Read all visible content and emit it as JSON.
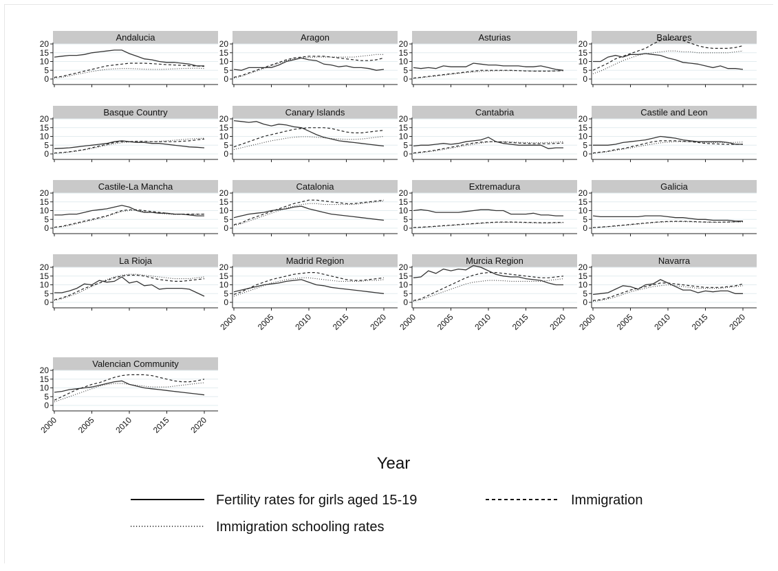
{
  "figure": {
    "background": "#ffffff"
  },
  "chart_data": {
    "type": "line",
    "xlabel": "Year",
    "ylim": [
      0,
      20
    ],
    "xlim": [
      2000,
      2020
    ],
    "y_ticks": [
      "0",
      "5",
      "10",
      "15",
      "20"
    ],
    "x_ticks": [
      "2000",
      "2005",
      "2010",
      "2015",
      "2020"
    ],
    "x": [
      2000,
      2001,
      2002,
      2003,
      2004,
      2005,
      2006,
      2007,
      2008,
      2009,
      2010,
      2011,
      2012,
      2013,
      2014,
      2015,
      2016,
      2017,
      2018,
      2019,
      2020
    ],
    "legend": [
      {
        "key": "fertility",
        "label": "Fertility rates for girls aged 15-19",
        "style": "solid"
      },
      {
        "key": "immigration",
        "label": "Immigration",
        "style": "dashed"
      },
      {
        "key": "schooling",
        "label": "Immigration schooling rates",
        "style": "dotted"
      }
    ],
    "panels": [
      {
        "region": "Andalucia",
        "fertility": [
          12.5,
          13,
          13.5,
          13.5,
          14,
          15,
          15.5,
          16,
          16.5,
          16.5,
          14.5,
          13,
          11.5,
          11,
          10,
          9.5,
          9.5,
          9,
          8.5,
          7.5,
          7.5
        ],
        "immigration": [
          1,
          1.5,
          2.5,
          3.5,
          4.5,
          5.5,
          6.5,
          7.5,
          8,
          8.5,
          9,
          9,
          9,
          8.8,
          8.5,
          8.2,
          8,
          7.8,
          7.6,
          7.4,
          7.2
        ],
        "schooling": [
          0.5,
          1,
          1.8,
          2.7,
          3.5,
          4.3,
          5,
          5.5,
          5.8,
          6,
          6,
          5.8,
          5.6,
          5.5,
          5.5,
          5.6,
          5.8,
          6,
          6.1,
          6.2,
          6
        ]
      },
      {
        "region": "Aragon",
        "fertility": [
          5.5,
          5,
          6.5,
          6.5,
          6.5,
          6.5,
          8,
          10,
          11,
          12,
          11,
          10.5,
          8.5,
          8,
          7,
          7.5,
          6.5,
          6.5,
          6,
          5,
          5.5
        ],
        "immigration": [
          1,
          2,
          3.5,
          5,
          6.5,
          8,
          9.5,
          11,
          12,
          12.5,
          13,
          13,
          13,
          12.5,
          12,
          11.5,
          11,
          10.5,
          10.5,
          11,
          12
        ],
        "schooling": [
          0.5,
          1.5,
          3,
          4.5,
          6,
          7.5,
          9,
          10.5,
          11.5,
          12,
          12.3,
          12.5,
          12.5,
          12.5,
          12.5,
          12.5,
          12.5,
          13,
          13.5,
          14,
          14
        ]
      },
      {
        "region": "Asturias",
        "fertility": [
          6.5,
          6,
          6.5,
          6,
          7.5,
          7,
          7,
          7,
          9,
          8.5,
          8,
          8,
          7.5,
          7.5,
          7.5,
          7,
          7,
          7.5,
          6.5,
          5.5,
          5
        ],
        "immigration": [
          0.5,
          1,
          1.5,
          2,
          2.5,
          3,
          3.5,
          4,
          4.5,
          5,
          5,
          5,
          5,
          5,
          4.8,
          4.6,
          4.5,
          4.5,
          4.5,
          4.6,
          4.8
        ],
        "schooling": [
          0.3,
          0.8,
          1.2,
          1.7,
          2.2,
          2.7,
          3.2,
          3.7,
          4,
          4.3,
          4.5,
          4.7,
          4.8,
          4.8,
          4.8,
          4.7,
          4.6,
          4.6,
          4.6,
          4.7,
          4.8
        ]
      },
      {
        "region": "Baleares",
        "fertility": [
          10,
          10,
          12.5,
          13.5,
          12.5,
          14,
          14,
          14.5,
          14,
          13.5,
          12,
          11,
          9.5,
          9,
          8.5,
          7.5,
          6.5,
          7.5,
          6,
          6,
          5.5
        ],
        "immigration": [
          5,
          7,
          9,
          11.5,
          13,
          14.5,
          16,
          17.5,
          20,
          22,
          22.5,
          22.5,
          22,
          20.5,
          19,
          18,
          17.5,
          17.5,
          17.5,
          18,
          19
        ],
        "schooling": [
          3,
          4.5,
          6.5,
          8.5,
          10.5,
          12,
          13.5,
          14.5,
          15,
          15.5,
          16,
          16,
          15.5,
          15.5,
          15,
          15,
          15,
          15,
          15,
          15.5,
          16
        ]
      },
      {
        "region": "Basque Country",
        "fertility": [
          3,
          3.2,
          3.5,
          4,
          4.5,
          5,
          5.5,
          6,
          7,
          7.5,
          7,
          6.5,
          6.5,
          6,
          6,
          5.5,
          5,
          4.5,
          4,
          3.8,
          3.5
        ],
        "immigration": [
          0.5,
          0.8,
          1.2,
          1.8,
          2.5,
          3.5,
          4.5,
          5.5,
          6.5,
          7,
          7,
          7.2,
          7.2,
          7,
          7,
          7,
          7,
          7.2,
          7.5,
          8,
          8.5
        ],
        "schooling": [
          0.3,
          0.6,
          1,
          1.6,
          2.3,
          3.1,
          4,
          5,
          5.8,
          6.4,
          6.8,
          7,
          7,
          7,
          7.2,
          7.5,
          7.8,
          8.2,
          8.5,
          8.8,
          9
        ]
      },
      {
        "region": "Canary Islands",
        "fertility": [
          19,
          18.5,
          18,
          18.5,
          17,
          16,
          17,
          16.5,
          15.5,
          15,
          13,
          11,
          9.5,
          8.5,
          7.5,
          7,
          6.5,
          6,
          5.5,
          5,
          4.5
        ],
        "immigration": [
          4,
          5.5,
          7,
          8.5,
          10,
          11,
          12,
          13,
          14,
          14.5,
          15,
          15,
          15,
          14.5,
          13.5,
          12.5,
          12,
          12,
          12.5,
          13,
          13.5
        ],
        "schooling": [
          2.5,
          3.5,
          4.5,
          5.5,
          6.5,
          7.5,
          8.2,
          9,
          9.5,
          9.8,
          9.8,
          9.5,
          9.2,
          8.8,
          8.5,
          8.3,
          8.3,
          8.5,
          9,
          9.5,
          10
        ]
      },
      {
        "region": "Cantabria",
        "fertility": [
          4.5,
          5,
          5,
          5.5,
          6,
          5.5,
          6,
          7,
          7.5,
          8,
          9.5,
          7,
          6,
          5.5,
          5,
          5,
          5,
          5,
          3,
          3.5,
          3.5
        ],
        "immigration": [
          0.5,
          1,
          1.5,
          2.2,
          3,
          3.8,
          4.6,
          5.5,
          6.2,
          6.7,
          7,
          7,
          6.8,
          6.5,
          6.2,
          6,
          5.8,
          5.8,
          5.8,
          6,
          6.2
        ],
        "schooling": [
          0.3,
          0.7,
          1.2,
          1.8,
          2.5,
          3.3,
          4,
          4.8,
          5.5,
          6.2,
          6.8,
          7,
          7,
          6.8,
          6.6,
          6.5,
          6.4,
          6.4,
          6.5,
          6.7,
          7
        ]
      },
      {
        "region": "Castile and Leon",
        "fertility": [
          5,
          5,
          5,
          5.5,
          6.5,
          7,
          7.5,
          8,
          9,
          10,
          9.5,
          9,
          8,
          7.5,
          7,
          7,
          7,
          7,
          6.5,
          5.5,
          5.5
        ],
        "immigration": [
          0.5,
          1,
          1.5,
          2.5,
          3,
          4,
          5,
          6,
          7,
          7.5,
          7.5,
          7.5,
          7.2,
          7,
          6.5,
          6,
          5.8,
          5.6,
          5.5,
          5.5,
          5.5
        ],
        "schooling": [
          0.3,
          0.8,
          1.3,
          2,
          2.7,
          3.4,
          4.2,
          5,
          5.7,
          6.3,
          6.7,
          7,
          7,
          7,
          6.8,
          6.6,
          6.5,
          6.5,
          6.5,
          6.6,
          6.8
        ]
      },
      {
        "region": "Castile-La Mancha",
        "fertility": [
          7.5,
          7.5,
          8,
          8,
          9,
          10,
          10.5,
          11,
          12,
          13,
          12,
          10,
          9,
          9,
          8.5,
          8.5,
          8,
          8,
          7.5,
          7,
          7
        ],
        "immigration": [
          0.5,
          1,
          2,
          3,
          4,
          5,
          6,
          7,
          8.5,
          10,
          10.5,
          10.5,
          10,
          9.5,
          9,
          8.5,
          8,
          8,
          8,
          8,
          8
        ],
        "schooling": [
          0.3,
          0.8,
          1.5,
          2.5,
          3.5,
          4.5,
          5.5,
          6.8,
          8.2,
          9.5,
          10,
          10,
          9.5,
          9,
          8.5,
          8,
          7.8,
          7.8,
          7.8,
          7.8,
          8
        ]
      },
      {
        "region": "Catalonia",
        "fertility": [
          6,
          7,
          8,
          8.5,
          9,
          10,
          10.5,
          11,
          12,
          12.5,
          11,
          10,
          9,
          8,
          7.5,
          7,
          6.5,
          6,
          5.5,
          5,
          4.5
        ],
        "immigration": [
          2,
          3,
          5,
          6.5,
          8,
          9.5,
          11,
          12.5,
          14,
          15,
          16,
          16,
          15.5,
          15,
          14.5,
          14,
          14,
          14.5,
          15,
          15.5,
          16
        ],
        "schooling": [
          1.5,
          2.5,
          4,
          5.5,
          7,
          8.5,
          10,
          11.5,
          12.5,
          13.5,
          14,
          14,
          13.5,
          13.5,
          13.5,
          13.5,
          13.5,
          14,
          14.5,
          15,
          15.5
        ]
      },
      {
        "region": "Extremadura",
        "fertility": [
          10,
          10.5,
          10,
          9,
          9,
          9,
          9,
          9.5,
          10,
          10.5,
          10.5,
          10,
          10,
          8,
          8,
          8,
          8.5,
          7.5,
          7.5,
          7,
          7
        ],
        "immigration": [
          0.3,
          0.5,
          0.8,
          1.1,
          1.4,
          1.7,
          2,
          2.3,
          2.6,
          2.9,
          3.2,
          3.4,
          3.5,
          3.5,
          3.4,
          3.3,
          3.2,
          3.1,
          3.1,
          3.2,
          3.3
        ],
        "schooling": [
          0.2,
          0.4,
          0.6,
          0.9,
          1.2,
          1.5,
          1.8,
          2.1,
          2.4,
          2.7,
          3,
          3.2,
          3.3,
          3.3,
          3.2,
          3.1,
          3,
          2.9,
          2.9,
          3,
          3.1
        ]
      },
      {
        "region": "Galicia",
        "fertility": [
          7,
          6.5,
          6.5,
          6.5,
          6.5,
          6.5,
          6.5,
          7,
          7,
          7,
          6.5,
          6,
          6,
          5.5,
          5,
          5,
          4.5,
          4.5,
          4.5,
          4,
          4
        ],
        "immigration": [
          0.3,
          0.6,
          0.9,
          1.3,
          1.7,
          2.1,
          2.5,
          2.9,
          3.3,
          3.6,
          3.8,
          3.9,
          3.9,
          3.8,
          3.6,
          3.5,
          3.4,
          3.4,
          3.5,
          3.6,
          3.7
        ],
        "schooling": [
          0.2,
          0.5,
          0.8,
          1.1,
          1.5,
          1.9,
          2.3,
          2.7,
          3.1,
          3.4,
          3.6,
          3.7,
          3.7,
          3.6,
          3.5,
          3.4,
          3.3,
          3.3,
          3.4,
          3.5,
          3.6
        ]
      },
      {
        "region": "La Rioja",
        "fertility": [
          5.5,
          5.5,
          6.5,
          8,
          10.5,
          10,
          12.5,
          11.5,
          12,
          14.5,
          11,
          12,
          9.5,
          10,
          7.5,
          8,
          8,
          8,
          7.5,
          5.5,
          3.5
        ],
        "immigration": [
          1.5,
          2.5,
          4,
          6,
          8,
          9.5,
          11,
          12.5,
          14,
          15,
          15.5,
          15.5,
          15,
          14,
          13,
          12.5,
          12,
          12,
          12.5,
          13,
          13.5
        ],
        "schooling": [
          1,
          2,
          3.5,
          5,
          7,
          9,
          11,
          13,
          14.5,
          15.5,
          16,
          16,
          15.5,
          15,
          14.5,
          14,
          13.5,
          13.5,
          13.5,
          14,
          14.5
        ]
      },
      {
        "region": "Madrid Region",
        "fertility": [
          6,
          7,
          8,
          9,
          10,
          10.5,
          11,
          12,
          12.5,
          13,
          11.5,
          10,
          9.5,
          8.5,
          8,
          7.5,
          7,
          6.5,
          6,
          5.5,
          5
        ],
        "immigration": [
          4.5,
          6,
          8,
          10,
          11.5,
          13,
          14,
          15,
          16,
          16.5,
          17,
          17,
          16,
          15,
          14,
          13,
          12.5,
          12.5,
          13,
          13.5,
          14
        ],
        "schooling": [
          3.5,
          5,
          6.5,
          8,
          9.5,
          11,
          12,
          13,
          13.5,
          14,
          14,
          13.5,
          13,
          12.5,
          12,
          12,
          12,
          12,
          12.5,
          12.5,
          13
        ]
      },
      {
        "region": "Murcia Region",
        "fertility": [
          14,
          14.5,
          18,
          16.5,
          19,
          18,
          19,
          18.5,
          21,
          20,
          18,
          16,
          15,
          14.5,
          14.5,
          13.5,
          13,
          12.5,
          11,
          10,
          10
        ],
        "immigration": [
          1,
          2,
          4,
          6,
          8,
          10,
          12,
          14,
          15.5,
          16.5,
          17,
          17,
          16.5,
          16,
          15.5,
          15,
          14.5,
          14,
          14,
          14.5,
          15
        ],
        "schooling": [
          0.5,
          1.5,
          3,
          4.5,
          6,
          7.5,
          9,
          10.5,
          11.5,
          12,
          12.5,
          12.5,
          12.3,
          12,
          12,
          12,
          12,
          12,
          12.5,
          13,
          13.5
        ]
      },
      {
        "region": "Navarra",
        "fertility": [
          4.5,
          5,
          5.5,
          7.5,
          9.5,
          9,
          7.5,
          10,
          10.5,
          13,
          11,
          9,
          7,
          7,
          5.5,
          6.5,
          6,
          6.5,
          6.5,
          5,
          5
        ],
        "immigration": [
          1,
          1.5,
          2.5,
          4,
          5.5,
          7,
          8,
          9,
          10,
          11,
          11,
          10.5,
          10,
          9.5,
          9,
          8.5,
          8.5,
          8.5,
          9,
          9.5,
          10.5
        ],
        "schooling": [
          0.5,
          1,
          2,
          3,
          4.5,
          6,
          7,
          8,
          9,
          9.5,
          10,
          9.5,
          9,
          8.5,
          8,
          8,
          8,
          8,
          8.5,
          9,
          9.5
        ]
      },
      {
        "region": "Valencian Community",
        "fertility": [
          7.5,
          8,
          9,
          9.5,
          10,
          10.5,
          11.5,
          12.5,
          13.5,
          14,
          12,
          11,
          10,
          9.5,
          9,
          8.5,
          8,
          7.5,
          7,
          6.5,
          6
        ],
        "immigration": [
          3,
          5,
          7,
          9,
          10.5,
          12,
          13,
          14.5,
          16,
          17,
          17.5,
          17.5,
          17.5,
          17,
          16,
          15,
          14,
          13.5,
          13.5,
          14,
          15
        ],
        "schooling": [
          2,
          3.5,
          5,
          6.5,
          8,
          9.5,
          11,
          12,
          12.5,
          12.5,
          12,
          11.5,
          11,
          10.5,
          10.5,
          10.5,
          11,
          11.5,
          12,
          12.5,
          13
        ]
      }
    ]
  }
}
